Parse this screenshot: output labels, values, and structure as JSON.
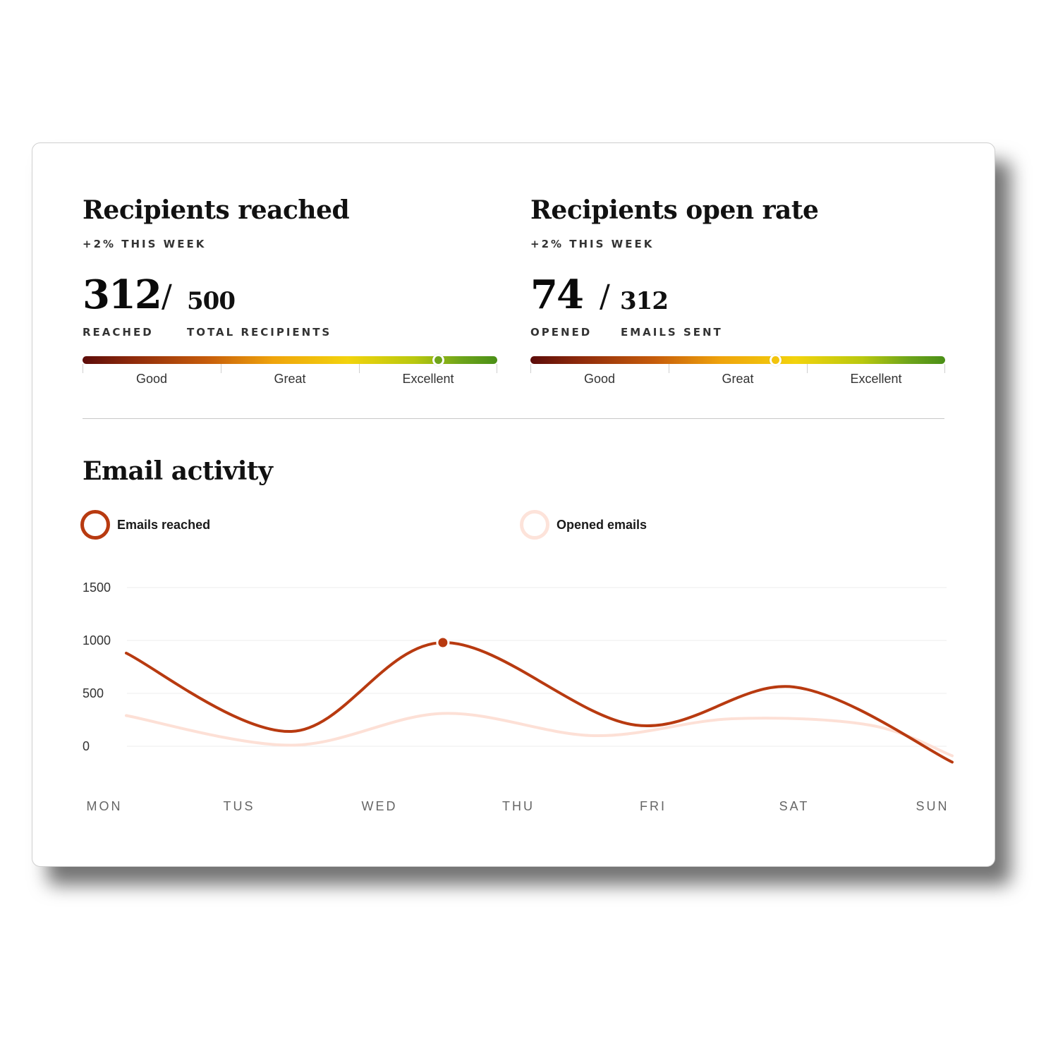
{
  "metrics": [
    {
      "title": "Recipients reached",
      "change": "+2% THIS WEEK",
      "value": "312",
      "slash": "/",
      "total": "500",
      "value_label": "REACHED",
      "total_label": "TOTAL RECIPIENTS",
      "scale": {
        "labels": [
          "Good",
          "Great",
          "Excellent"
        ],
        "marker_fraction": 0.857,
        "marker_color": "#6fa51a"
      }
    },
    {
      "title": "Recipients open rate",
      "change": "+2% THIS WEEK",
      "value": "74",
      "slash": "/",
      "total": "312",
      "value_label": "OPENED",
      "total_label": "EMAILS SENT",
      "scale": {
        "labels": [
          "Good",
          "Great",
          "Excellent"
        ],
        "marker_fraction": 0.59,
        "marker_color": "#f2c40d"
      }
    }
  ],
  "activity": {
    "title": "Email activity",
    "legend": [
      {
        "label": "Emails reached",
        "color": "#b83a10",
        "filled": true
      },
      {
        "label": "Opened emails",
        "color": "#fce0d6",
        "filled": false
      }
    ]
  },
  "chart_data": {
    "type": "line",
    "x": [
      "MON",
      "TUS",
      "WED",
      "THU",
      "FRI",
      "SAT",
      "SUN"
    ],
    "y_ticks": [
      0,
      500,
      1000,
      1500
    ],
    "ylim": [
      0,
      1500
    ],
    "grid": true,
    "legend_position": "top",
    "series": [
      {
        "name": "Emails reached",
        "color": "#b83a10",
        "points": [
          [
            0,
            880
          ],
          [
            1.2,
            140
          ],
          [
            2.3,
            980
          ],
          [
            3.7,
            200
          ],
          [
            4.85,
            560
          ],
          [
            6,
            -150
          ]
        ],
        "highlight": [
          2.3,
          980
        ]
      },
      {
        "name": "Opened emails",
        "color": "#fde0d6",
        "points": [
          [
            0,
            290
          ],
          [
            1.2,
            10
          ],
          [
            2.3,
            310
          ],
          [
            3.4,
            100
          ],
          [
            4.4,
            260
          ],
          [
            5.4,
            200
          ],
          [
            6,
            -90
          ]
        ]
      }
    ]
  }
}
